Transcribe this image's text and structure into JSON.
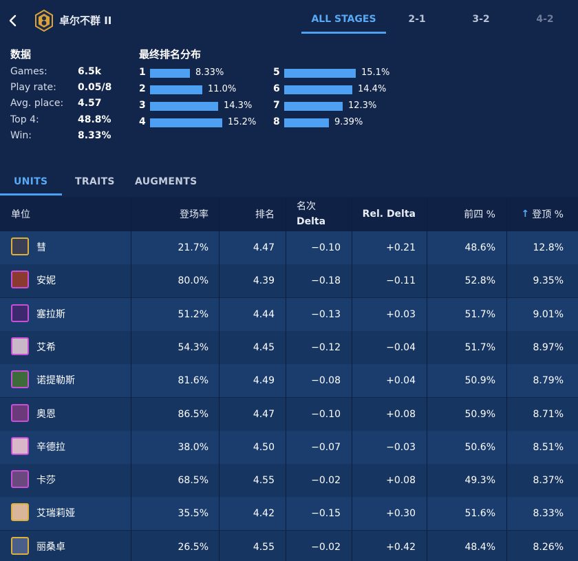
{
  "header": {
    "trait_name": "卓尔不群 II",
    "emblem_color": "#d9a23a",
    "stage_tabs": [
      "ALL STAGES",
      "2-1",
      "3-2",
      "4-2"
    ],
    "active_stage": "ALL STAGES"
  },
  "stats": {
    "title": "数据",
    "items": [
      {
        "label": "Games:",
        "value": "6.5k"
      },
      {
        "label": "Play rate:",
        "value": "0.05/8"
      },
      {
        "label": "Avg. place:",
        "value": "4.57"
      },
      {
        "label": "Top 4:",
        "value": "48.8%"
      },
      {
        "label": "Win:",
        "value": "8.33%"
      }
    ]
  },
  "distribution": {
    "title": "最终排名分布",
    "bar_color": "#4ea1f2",
    "items": [
      {
        "rank": "1",
        "pct": "8.33%",
        "value": 8.33
      },
      {
        "rank": "2",
        "pct": "11.0%",
        "value": 11.0
      },
      {
        "rank": "3",
        "pct": "14.3%",
        "value": 14.3
      },
      {
        "rank": "4",
        "pct": "15.2%",
        "value": 15.2
      },
      {
        "rank": "5",
        "pct": "15.1%",
        "value": 15.1
      },
      {
        "rank": "6",
        "pct": "14.4%",
        "value": 14.4
      },
      {
        "rank": "7",
        "pct": "12.3%",
        "value": 12.3
      },
      {
        "rank": "8",
        "pct": "9.39%",
        "value": 9.39
      }
    ]
  },
  "section_tabs": [
    "UNITS",
    "TRAITS",
    "AUGMENTS"
  ],
  "active_section": "UNITS",
  "table": {
    "headers": {
      "unit": "单位",
      "play_rate": "登场率",
      "place": "排名",
      "delta_line1": "名次",
      "delta_line2": "Delta",
      "rel_delta": "Rel. Delta",
      "top4": "前四 %",
      "win": "登顶 %",
      "sort_arrow": "↑"
    },
    "rows": [
      {
        "name": "彗",
        "play_rate": "21.7%",
        "place": "4.47",
        "delta": "−0.10",
        "rel_delta": "+0.21",
        "top4": "48.6%",
        "win": "12.8%",
        "border": "#e0b13a",
        "fill": "#3b3f55"
      },
      {
        "name": "安妮",
        "play_rate": "80.0%",
        "place": "4.39",
        "delta": "−0.18",
        "rel_delta": "−0.11",
        "top4": "52.8%",
        "win": "9.35%",
        "border": "#c94fd6",
        "fill": "#8a3a2e"
      },
      {
        "name": "塞拉斯",
        "play_rate": "51.2%",
        "place": "4.44",
        "delta": "−0.13",
        "rel_delta": "+0.03",
        "top4": "51.7%",
        "win": "9.01%",
        "border": "#c94fd6",
        "fill": "#3d2a6e"
      },
      {
        "name": "艾希",
        "play_rate": "54.3%",
        "place": "4.45",
        "delta": "−0.12",
        "rel_delta": "−0.04",
        "top4": "51.7%",
        "win": "8.97%",
        "border": "#c94fd6",
        "fill": "#c9b8c8"
      },
      {
        "name": "诺提勒斯",
        "play_rate": "81.6%",
        "place": "4.49",
        "delta": "−0.08",
        "rel_delta": "+0.04",
        "top4": "50.9%",
        "win": "8.79%",
        "border": "#c94fd6",
        "fill": "#3d6b3a"
      },
      {
        "name": "奥恩",
        "play_rate": "86.5%",
        "place": "4.47",
        "delta": "−0.10",
        "rel_delta": "+0.08",
        "top4": "50.9%",
        "win": "8.71%",
        "border": "#c94fd6",
        "fill": "#6a3a7a"
      },
      {
        "name": "辛德拉",
        "play_rate": "38.0%",
        "place": "4.50",
        "delta": "−0.07",
        "rel_delta": "−0.03",
        "top4": "50.6%",
        "win": "8.51%",
        "border": "#c94fd6",
        "fill": "#d8b8c8"
      },
      {
        "name": "卡莎",
        "play_rate": "68.5%",
        "place": "4.55",
        "delta": "−0.02",
        "rel_delta": "+0.08",
        "top4": "49.3%",
        "win": "8.37%",
        "border": "#c94fd6",
        "fill": "#6a4a7e"
      },
      {
        "name": "艾瑞莉娅",
        "play_rate": "35.5%",
        "place": "4.42",
        "delta": "−0.15",
        "rel_delta": "+0.30",
        "top4": "51.6%",
        "win": "8.33%",
        "border": "#e0b13a",
        "fill": "#d9b59a"
      },
      {
        "name": "丽桑卓",
        "play_rate": "26.5%",
        "place": "4.55",
        "delta": "−0.02",
        "rel_delta": "+0.42",
        "top4": "48.4%",
        "win": "8.26%",
        "border": "#e0b13a",
        "fill": "#4a5e8a"
      }
    ]
  }
}
